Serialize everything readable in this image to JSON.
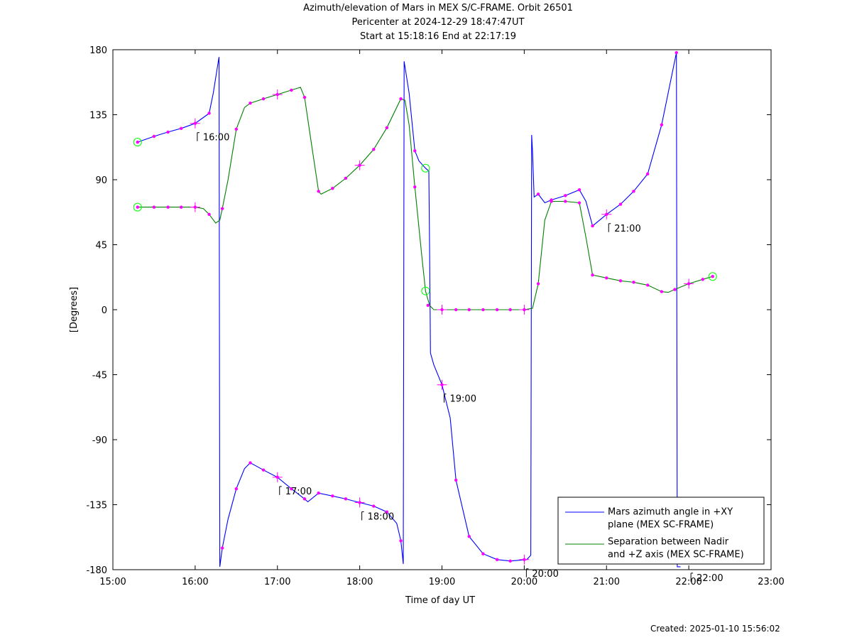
{
  "title_lines": [
    "Azimuth/elevation of Mars in MEX S/C-FRAME.  Orbit 26501",
    "Pericenter at 2024-12-29 18:47:47UT",
    "Start at 15:18:16 End at 22:17:19"
  ],
  "created": "Created: 2025-01-10 15:56:02",
  "chart_data": {
    "type": "line",
    "title": "Azimuth/elevation of Mars in MEX S/C-FRAME.  Orbit 26501",
    "xlabel": "Time of day UT",
    "ylabel": "[Degrees]",
    "x_unit": "hours (UT)",
    "xlim": [
      15,
      23
    ],
    "ylim": [
      -180,
      180
    ],
    "xticks": [
      15,
      16,
      17,
      18,
      19,
      20,
      21,
      22,
      23
    ],
    "xtick_labels": [
      "15:00",
      "16:00",
      "17:00",
      "18:00",
      "19:00",
      "20:00",
      "21:00",
      "22:00",
      "23:00"
    ],
    "yticks": [
      180,
      135,
      90,
      45,
      0,
      -45,
      -90,
      -135,
      -180
    ],
    "ytick_labels": [
      "180",
      "135",
      "90",
      "45",
      "0",
      "-45",
      "-90",
      "-135",
      "-180"
    ],
    "legend_position": "bottom-right",
    "series": [
      {
        "name": "Mars azimuth angle in +XY plane (MEX SC-FRAME)",
        "legend_lines": [
          "Mars azimuth angle in +XY",
          "plane (MEX SC-FRAME)"
        ],
        "color": "#0000ff",
        "points": [
          [
            15.3,
            116
          ],
          [
            15.5,
            120
          ],
          [
            15.67,
            123
          ],
          [
            15.83,
            125.5
          ],
          [
            16.0,
            129
          ],
          [
            16.17,
            136
          ],
          [
            16.22,
            150
          ],
          [
            16.27,
            168
          ],
          [
            16.29,
            175
          ],
          [
            16.3,
            -178
          ],
          [
            16.33,
            -165
          ],
          [
            16.4,
            -145
          ],
          [
            16.5,
            -124
          ],
          [
            16.6,
            -110
          ],
          [
            16.67,
            -106
          ],
          [
            16.83,
            -111
          ],
          [
            17.0,
            -116
          ],
          [
            17.17,
            -124
          ],
          [
            17.33,
            -131
          ],
          [
            17.37,
            -133
          ],
          [
            17.5,
            -127
          ],
          [
            17.67,
            -129
          ],
          [
            17.83,
            -131
          ],
          [
            18.0,
            -133.5
          ],
          [
            18.17,
            -136
          ],
          [
            18.33,
            -140
          ],
          [
            18.45,
            -148
          ],
          [
            18.5,
            -160
          ],
          [
            18.53,
            -176
          ],
          [
            18.54,
            172
          ],
          [
            18.6,
            150
          ],
          [
            18.67,
            110
          ],
          [
            18.72,
            103
          ],
          [
            18.8,
            98
          ],
          [
            18.84,
            96
          ],
          [
            18.85,
            40
          ],
          [
            18.86,
            -30
          ],
          [
            18.9,
            -38
          ],
          [
            19.0,
            -52
          ],
          [
            19.1,
            -75
          ],
          [
            19.17,
            -118
          ],
          [
            19.33,
            -157
          ],
          [
            19.5,
            -169
          ],
          [
            19.67,
            -173
          ],
          [
            19.83,
            -174
          ],
          [
            20.03,
            -173
          ],
          [
            20.08,
            -170
          ],
          [
            20.09,
            121
          ],
          [
            20.1,
            110
          ],
          [
            20.12,
            78
          ],
          [
            20.17,
            80
          ],
          [
            20.25,
            74
          ],
          [
            20.33,
            76
          ],
          [
            20.5,
            79
          ],
          [
            20.67,
            83
          ],
          [
            20.75,
            75
          ],
          [
            20.83,
            58
          ],
          [
            21.0,
            66
          ],
          [
            21.17,
            73
          ],
          [
            21.33,
            82
          ],
          [
            21.5,
            94
          ],
          [
            21.67,
            128
          ],
          [
            21.85,
            178
          ],
          [
            21.86,
            -178
          ],
          [
            21.9,
            -178
          ]
        ],
        "markers": [
          [
            15.3,
            116
          ],
          [
            15.5,
            120
          ],
          [
            15.67,
            123
          ],
          [
            15.83,
            125.5
          ],
          [
            16.0,
            129
          ],
          [
            16.17,
            136
          ],
          [
            16.33,
            -165
          ],
          [
            16.5,
            -124
          ],
          [
            16.67,
            -106
          ],
          [
            16.83,
            -111
          ],
          [
            17.0,
            -116
          ],
          [
            17.17,
            -124
          ],
          [
            17.33,
            -131
          ],
          [
            17.5,
            -127
          ],
          [
            17.67,
            -129
          ],
          [
            17.83,
            -131
          ],
          [
            18.0,
            -133.5
          ],
          [
            18.17,
            -136
          ],
          [
            18.33,
            -140
          ],
          [
            18.5,
            -160
          ],
          [
            18.67,
            110
          ],
          [
            19.0,
            -52
          ],
          [
            19.17,
            -118
          ],
          [
            19.33,
            -157
          ],
          [
            19.5,
            -169
          ],
          [
            19.67,
            -173
          ],
          [
            19.83,
            -174
          ],
          [
            20.0,
            -173
          ],
          [
            20.17,
            80
          ],
          [
            20.33,
            76
          ],
          [
            20.5,
            79
          ],
          [
            20.67,
            83
          ],
          [
            20.83,
            58
          ],
          [
            21.0,
            66
          ],
          [
            21.17,
            73
          ],
          [
            21.33,
            82
          ],
          [
            21.5,
            94
          ],
          [
            21.67,
            128
          ],
          [
            21.85,
            178
          ]
        ]
      },
      {
        "name": "Separation between Nadir and +Z axis (MEX SC-FRAME)",
        "legend_lines": [
          "Separation between Nadir",
          "and +Z axis (MEX SC-FRAME)"
        ],
        "color": "#008000",
        "points": [
          [
            15.3,
            71
          ],
          [
            15.5,
            71
          ],
          [
            15.67,
            71
          ],
          [
            15.83,
            71
          ],
          [
            16.0,
            71
          ],
          [
            16.1,
            70
          ],
          [
            16.17,
            66
          ],
          [
            16.25,
            60
          ],
          [
            16.3,
            62
          ],
          [
            16.33,
            70
          ],
          [
            16.4,
            90
          ],
          [
            16.5,
            125
          ],
          [
            16.6,
            140
          ],
          [
            16.67,
            143
          ],
          [
            16.83,
            146
          ],
          [
            17.0,
            149
          ],
          [
            17.17,
            152
          ],
          [
            17.28,
            154
          ],
          [
            17.33,
            147
          ],
          [
            17.4,
            120
          ],
          [
            17.5,
            82
          ],
          [
            17.53,
            80
          ],
          [
            17.67,
            84
          ],
          [
            17.83,
            91
          ],
          [
            18.0,
            100
          ],
          [
            18.17,
            111
          ],
          [
            18.33,
            126
          ],
          [
            18.5,
            146
          ],
          [
            18.55,
            145
          ],
          [
            18.6,
            128
          ],
          [
            18.67,
            85
          ],
          [
            18.75,
            40
          ],
          [
            18.8,
            13
          ],
          [
            18.85,
            3
          ],
          [
            18.9,
            0
          ],
          [
            19.0,
            0
          ],
          [
            19.5,
            0
          ],
          [
            20.0,
            0
          ],
          [
            20.1,
            1
          ],
          [
            20.17,
            18
          ],
          [
            20.25,
            62
          ],
          [
            20.33,
            75
          ],
          [
            20.5,
            75
          ],
          [
            20.67,
            74
          ],
          [
            20.75,
            50
          ],
          [
            20.83,
            24
          ],
          [
            21.0,
            22
          ],
          [
            21.17,
            20
          ],
          [
            21.33,
            19
          ],
          [
            21.5,
            17
          ],
          [
            21.67,
            12.5
          ],
          [
            21.75,
            12
          ],
          [
            21.83,
            14
          ],
          [
            22.0,
            18
          ],
          [
            22.17,
            21
          ],
          [
            22.29,
            23
          ]
        ],
        "markers": [
          [
            15.3,
            71
          ],
          [
            15.5,
            71
          ],
          [
            15.67,
            71
          ],
          [
            15.83,
            71
          ],
          [
            16.0,
            71
          ],
          [
            16.17,
            66
          ],
          [
            16.33,
            70
          ],
          [
            16.5,
            125
          ],
          [
            16.67,
            143
          ],
          [
            16.83,
            146
          ],
          [
            17.0,
            149
          ],
          [
            17.17,
            152
          ],
          [
            17.33,
            147
          ],
          [
            17.5,
            82
          ],
          [
            17.67,
            84
          ],
          [
            17.83,
            91
          ],
          [
            18.0,
            100
          ],
          [
            18.17,
            111
          ],
          [
            18.33,
            126
          ],
          [
            18.5,
            146
          ],
          [
            18.67,
            85
          ],
          [
            18.83,
            3
          ],
          [
            19.0,
            0
          ],
          [
            19.17,
            0
          ],
          [
            19.33,
            0
          ],
          [
            19.5,
            0
          ],
          [
            19.67,
            0
          ],
          [
            19.83,
            0
          ],
          [
            20.0,
            0
          ],
          [
            20.17,
            18
          ],
          [
            20.33,
            75
          ],
          [
            20.5,
            75
          ],
          [
            20.67,
            74
          ],
          [
            20.83,
            24
          ],
          [
            21.0,
            22
          ],
          [
            21.17,
            20
          ],
          [
            21.33,
            19
          ],
          [
            21.5,
            17
          ],
          [
            21.67,
            12.5
          ],
          [
            21.83,
            14
          ],
          [
            22.0,
            18
          ],
          [
            22.17,
            21
          ],
          [
            22.29,
            23
          ]
        ]
      }
    ],
    "hour_markers": [
      [
        16.0,
        129
      ],
      [
        16.0,
        71
      ],
      [
        17.0,
        -116
      ],
      [
        17.0,
        149
      ],
      [
        18.0,
        -133.5
      ],
      [
        18.0,
        100
      ],
      [
        19.0,
        -52
      ],
      [
        19.0,
        0
      ],
      [
        20.0,
        -173
      ],
      [
        20.0,
        0
      ],
      [
        21.0,
        66
      ],
      [
        22.0,
        18
      ]
    ],
    "circle_markers": [
      {
        "x": 15.3,
        "y": 116
      },
      {
        "x": 15.3,
        "y": 71
      },
      {
        "x": 18.8,
        "y": 98
      },
      {
        "x": 18.8,
        "y": 13
      },
      {
        "x": 22.29,
        "y": 23
      }
    ],
    "annotations": [
      {
        "text": "16:00",
        "x": 16.0,
        "y": 129
      },
      {
        "text": "17:00",
        "x": 17.0,
        "y": -116
      },
      {
        "text": "18:00",
        "x": 18.0,
        "y": -133.5
      },
      {
        "text": "19:00",
        "x": 19.0,
        "y": -52
      },
      {
        "text": "20:00",
        "x": 20.0,
        "y": -173
      },
      {
        "text": "21:00",
        "x": 21.0,
        "y": 66
      },
      {
        "text": "22:00",
        "x": 22.0,
        "y": -176
      }
    ],
    "marker_color": "#ff00ff",
    "circle_color": "#00ff00"
  }
}
